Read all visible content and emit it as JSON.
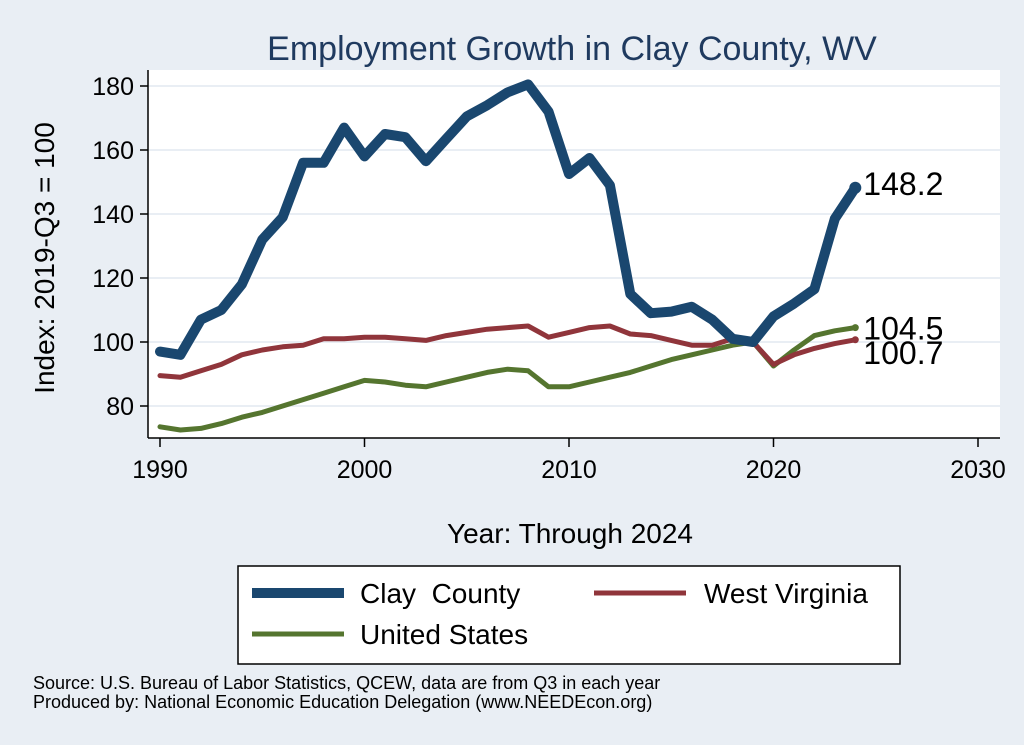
{
  "chart_data": {
    "type": "line",
    "title": "Employment Growth in Clay County, WV",
    "xlabel": "Year: Through 2024",
    "ylabel": "Index: 2019-Q3 = 100",
    "xlim": [
      1990,
      2030
    ],
    "ylim": [
      70,
      185
    ],
    "xticks": [
      1990,
      2000,
      2010,
      2020,
      2030
    ],
    "yticks": [
      80,
      100,
      120,
      140,
      160,
      180
    ],
    "x": [
      1990,
      1991,
      1992,
      1993,
      1994,
      1995,
      1996,
      1997,
      1998,
      1999,
      2000,
      2001,
      2002,
      2003,
      2004,
      2005,
      2006,
      2007,
      2008,
      2009,
      2010,
      2011,
      2012,
      2013,
      2014,
      2015,
      2016,
      2017,
      2018,
      2019,
      2020,
      2021,
      2022,
      2023,
      2024
    ],
    "series": [
      {
        "name": "Clay  County",
        "color": "#1a476f",
        "end_label": "148.2",
        "values": [
          97,
          96,
          107,
          110,
          118,
          132,
          139,
          156,
          156,
          167,
          158,
          165,
          164,
          156.5,
          163.5,
          170.5,
          174,
          178,
          180.5,
          172,
          152.5,
          157.5,
          149,
          115,
          109,
          109.5,
          111,
          107,
          101,
          100,
          108,
          112,
          116.5,
          138.5,
          148.2
        ]
      },
      {
        "name": "West Virginia",
        "color": "#90353b",
        "end_label": "100.7",
        "values": [
          89.5,
          89,
          91,
          93,
          96,
          97.5,
          98.5,
          99,
          101,
          101,
          101.5,
          101.5,
          101,
          100.5,
          102,
          103,
          104,
          104.5,
          105,
          101.5,
          103,
          104.5,
          105,
          102.5,
          102,
          100.5,
          99,
          99,
          101,
          100,
          93,
          96,
          98,
          99.5,
          100.7
        ]
      },
      {
        "name": "United States",
        "color": "#55752f",
        "end_label": "104.5",
        "values": [
          73.5,
          72.5,
          73,
          74.5,
          76.5,
          78,
          80,
          82,
          84,
          86,
          88,
          87.5,
          86.5,
          86,
          87.5,
          89,
          90.5,
          91.5,
          91,
          86,
          86,
          87.5,
          89,
          90.5,
          92.5,
          94.5,
          96,
          97.5,
          99,
          100,
          92.5,
          97.5,
          102,
          103.5,
          104.5
        ]
      }
    ],
    "legend_position": "bottom",
    "source_note": "Source: U.S. Bureau of Labor Statistics, QCEW, data are from Q3 in each year",
    "producer_note": "Produced by: National Economic Education Delegation (www.NEEDEcon.org)"
  }
}
